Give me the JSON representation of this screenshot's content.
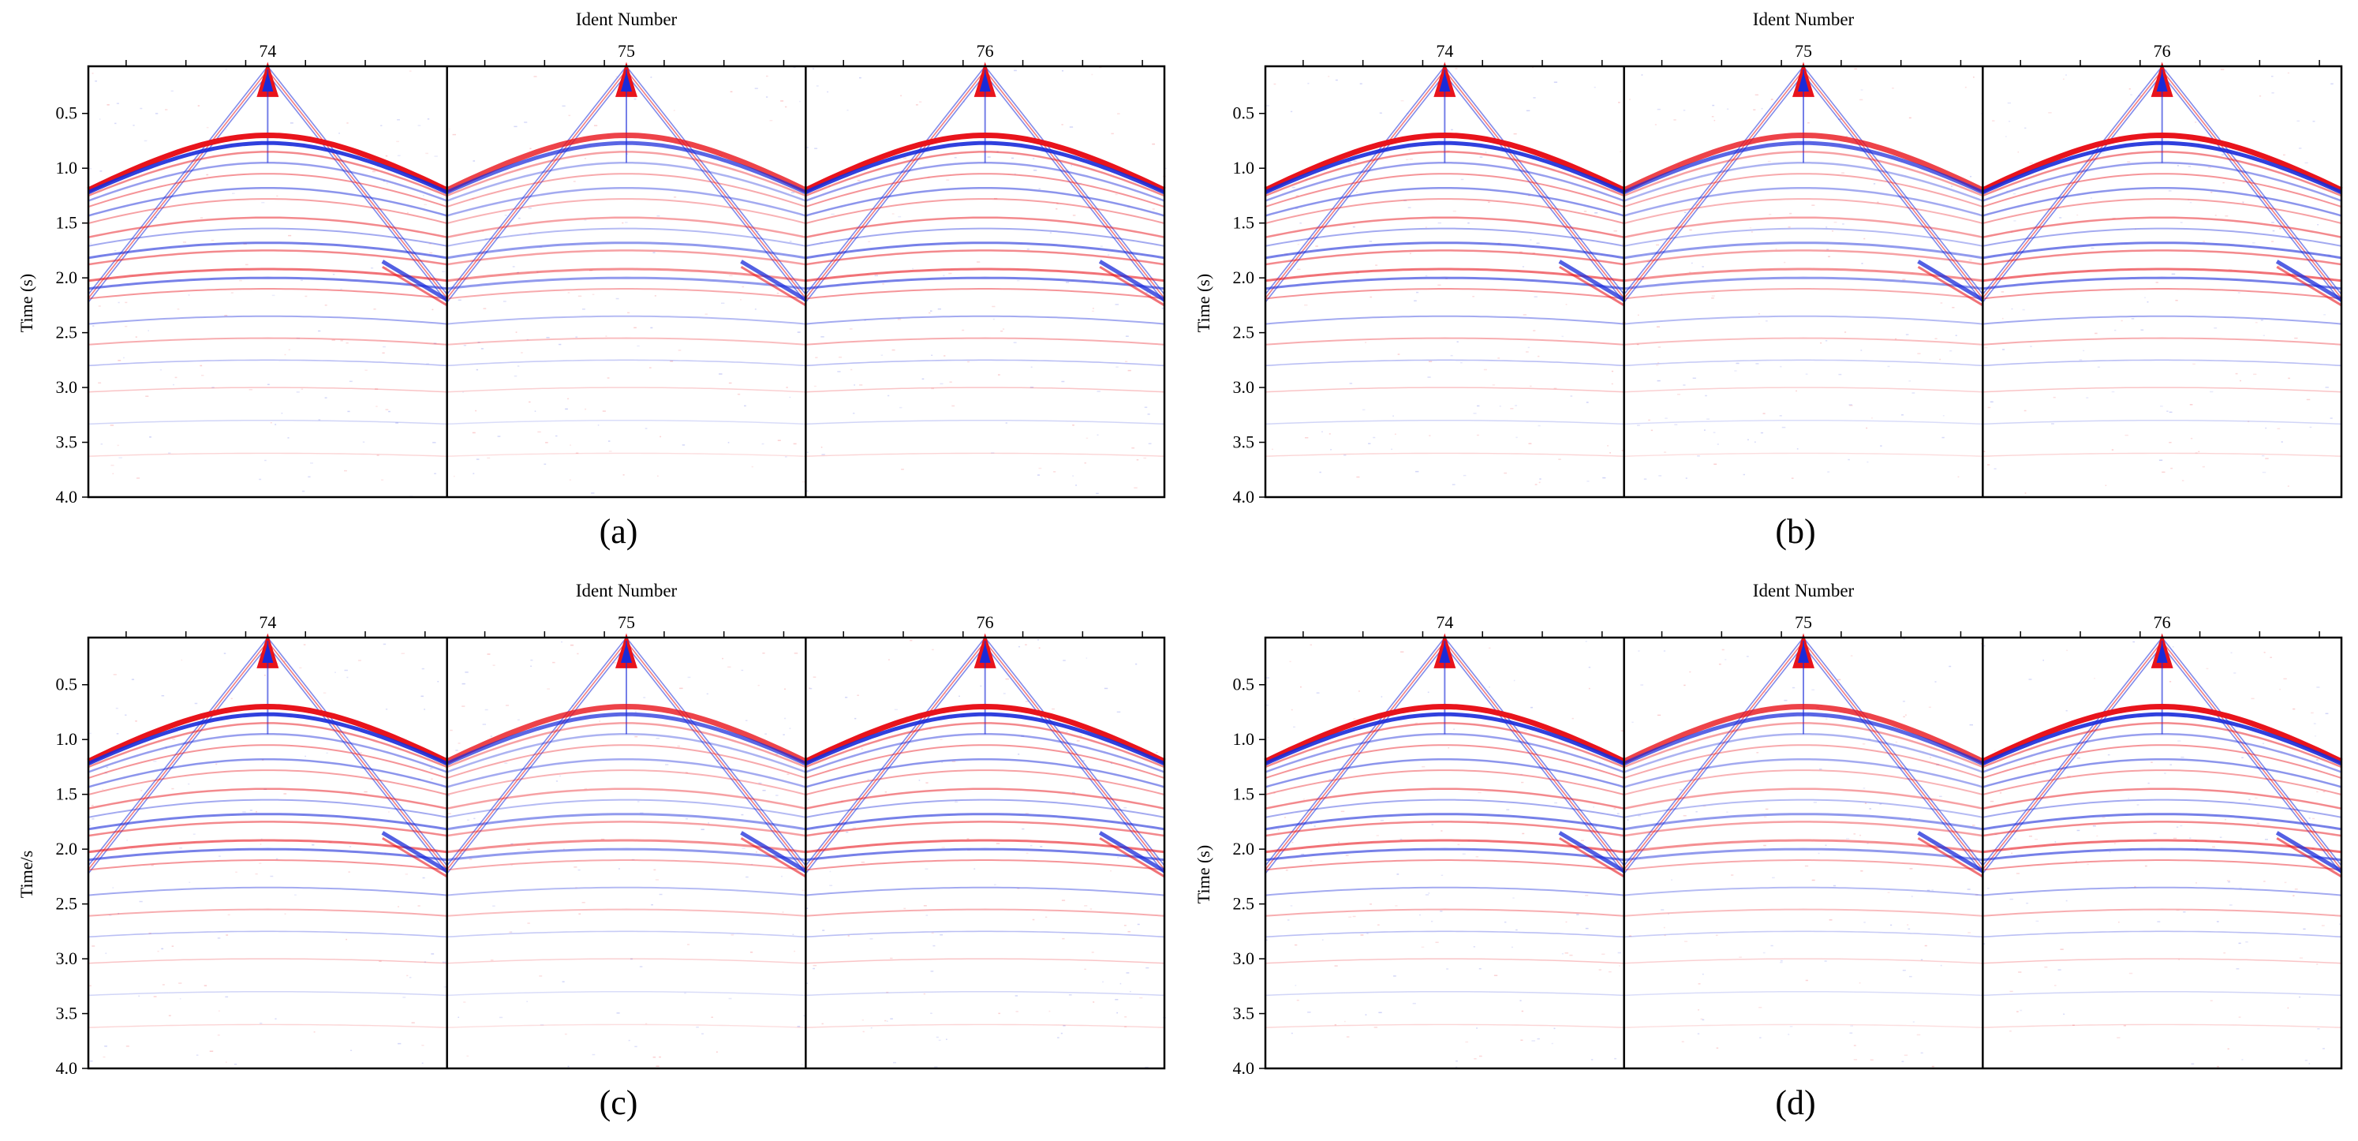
{
  "figure": {
    "panels": [
      {
        "id": "a",
        "caption": "(a)",
        "title": "Ident  Number",
        "ylabel": "Time (s)",
        "gathers": [
          "74",
          "75",
          "76"
        ],
        "yticks": [
          "0.5",
          "1.0",
          "1.5",
          "2.0",
          "2.5",
          "3.0",
          "3.5",
          "4.0"
        ]
      },
      {
        "id": "b",
        "caption": "(b)",
        "title": "Ident  Number",
        "ylabel": "Time (s)",
        "gathers": [
          "74",
          "75",
          "76"
        ],
        "yticks": [
          "0.5",
          "1.0",
          "1.5",
          "2.0",
          "2.5",
          "3.0",
          "3.5",
          "4.0"
        ]
      },
      {
        "id": "c",
        "caption": "(c)",
        "title": "Ident  Number",
        "ylabel": "Time/s",
        "gathers": [
          "74",
          "75",
          "76"
        ],
        "yticks": [
          "0.5",
          "1.0",
          "1.5",
          "2.0",
          "2.5",
          "3.0",
          "3.5",
          "4.0"
        ]
      },
      {
        "id": "d",
        "caption": "(d)",
        "title": "Ident  Number",
        "ylabel": "Time (s)",
        "gathers": [
          "74",
          "75",
          "76"
        ],
        "yticks": [
          "0.5",
          "1.0",
          "1.5",
          "2.0",
          "2.5",
          "3.0",
          "3.5",
          "4.0"
        ]
      }
    ],
    "colors": {
      "positive": "#e8141c",
      "negative": "#1a2bd9",
      "frame": "#000000",
      "background": "#ffffff"
    }
  }
}
